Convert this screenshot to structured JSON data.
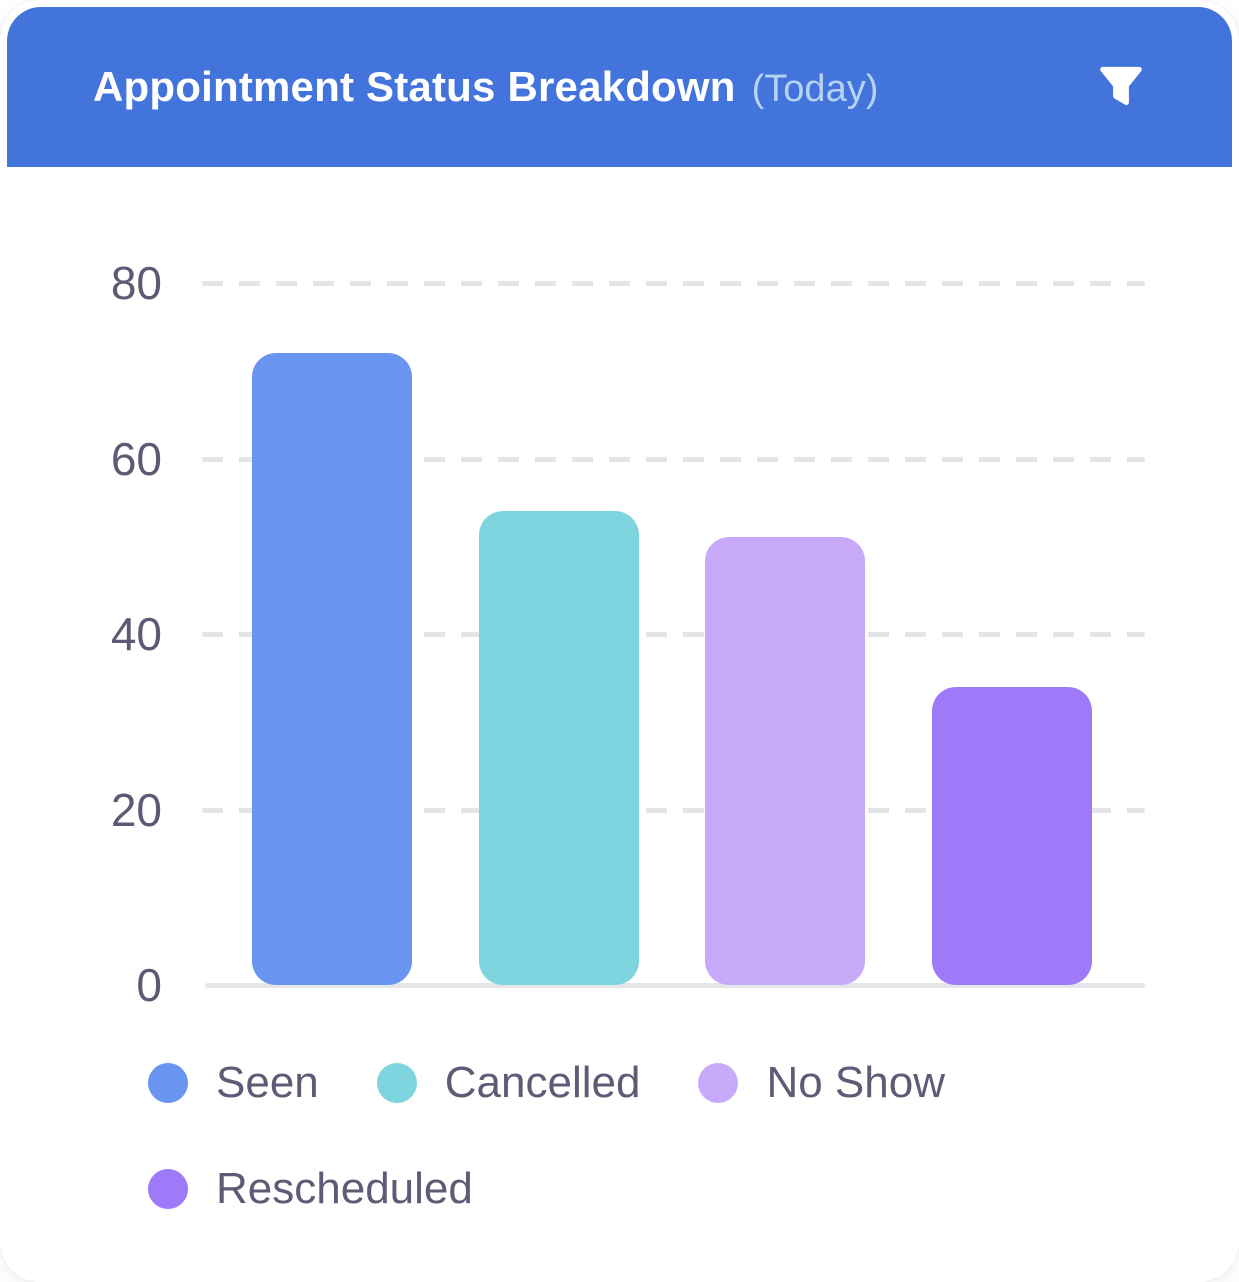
{
  "header": {
    "title": "Appointment Status Breakdown",
    "subtitle": "(Today)",
    "background_color": "#4274dc",
    "title_color": "#ffffff",
    "subtitle_color": "#b7d3f3",
    "filter_icon": "funnel-icon",
    "icon_color": "#ffffff"
  },
  "chart_data": {
    "type": "bar",
    "title": "Appointment Status Breakdown (Today)",
    "categories": [
      "Seen",
      "Cancelled",
      "No Show",
      "Rescheduled"
    ],
    "values": [
      72,
      54,
      51,
      34
    ],
    "colors": [
      "#6994ef",
      "#7ed5df",
      "#c7abfa",
      "#9e79f8"
    ],
    "xlabel": "",
    "ylabel": "",
    "ylim": [
      0,
      80
    ],
    "yticks": [
      0,
      20,
      40,
      60,
      80
    ],
    "grid": "horizontal-dashed",
    "gridline_color": "#e3e5e9",
    "axis_line_color": "#e5e6e9",
    "tick_label_color": "#5c5a74",
    "legend_position": "bottom",
    "legend": [
      "Seen",
      "Cancelled",
      "No Show",
      "Rescheduled"
    ],
    "legend_label_color": "#5d5b76"
  }
}
